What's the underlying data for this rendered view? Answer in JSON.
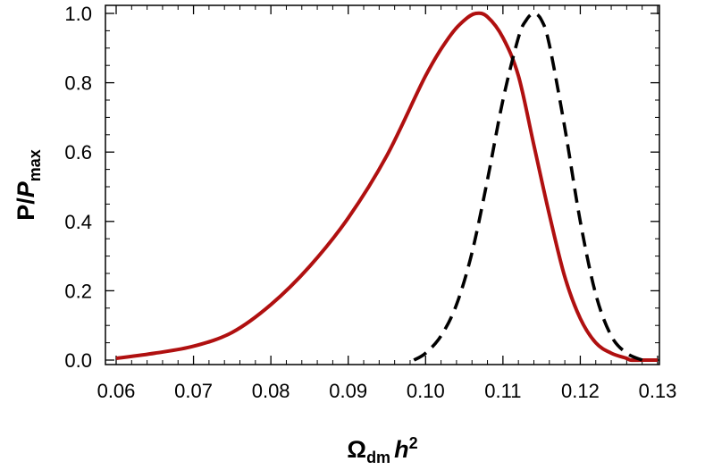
{
  "chart_data": {
    "type": "line",
    "title": "",
    "xlabel": {
      "main": "Ω",
      "sub": "dm",
      "italic": "h",
      "sup": "2"
    },
    "ylabel": {
      "main": "P/",
      "italic": "P",
      "sub": "max"
    },
    "xlim": [
      0.06,
      0.13
    ],
    "ylim": [
      0.0,
      1.0
    ],
    "x_ticks": [
      0.06,
      0.07,
      0.08,
      0.09,
      0.1,
      0.11,
      0.12,
      0.13
    ],
    "x_tick_labels": [
      "0.06",
      "0.07",
      "0.08",
      "0.09",
      "0.10",
      "0.11",
      "0.12",
      "0.13"
    ],
    "y_ticks": [
      0.0,
      0.2,
      0.4,
      0.6,
      0.8,
      1.0
    ],
    "y_tick_labels": [
      "0.0",
      "0.2",
      "0.4",
      "0.6",
      "0.8",
      "1.0"
    ],
    "grid": false,
    "series": [
      {
        "style": "solid",
        "color": "#b01010",
        "x": [
          0.06,
          0.065,
          0.07,
          0.075,
          0.08,
          0.085,
          0.09,
          0.095,
          0.1,
          0.103,
          0.105,
          0.1065,
          0.108,
          0.11,
          0.112,
          0.114,
          0.116,
          0.118,
          0.12,
          0.122,
          0.124,
          0.126,
          0.1265,
          0.128,
          0.13
        ],
        "y": [
          0.005,
          0.02,
          0.04,
          0.08,
          0.16,
          0.27,
          0.41,
          0.59,
          0.82,
          0.93,
          0.98,
          1.0,
          0.99,
          0.93,
          0.82,
          0.62,
          0.42,
          0.24,
          0.12,
          0.05,
          0.02,
          0.005,
          0.0,
          0.0,
          0.0
        ]
      },
      {
        "style": "dashed",
        "color": "#000000",
        "x": [
          0.0985,
          0.1,
          0.102,
          0.104,
          0.106,
          0.108,
          0.11,
          0.112,
          0.113,
          0.114,
          0.115,
          0.116,
          0.118,
          0.12,
          0.122,
          0.124,
          0.126,
          0.128
        ],
        "y": [
          0.0,
          0.02,
          0.07,
          0.16,
          0.31,
          0.52,
          0.75,
          0.93,
          0.98,
          1.0,
          0.98,
          0.91,
          0.67,
          0.4,
          0.19,
          0.07,
          0.02,
          0.0
        ]
      }
    ]
  }
}
